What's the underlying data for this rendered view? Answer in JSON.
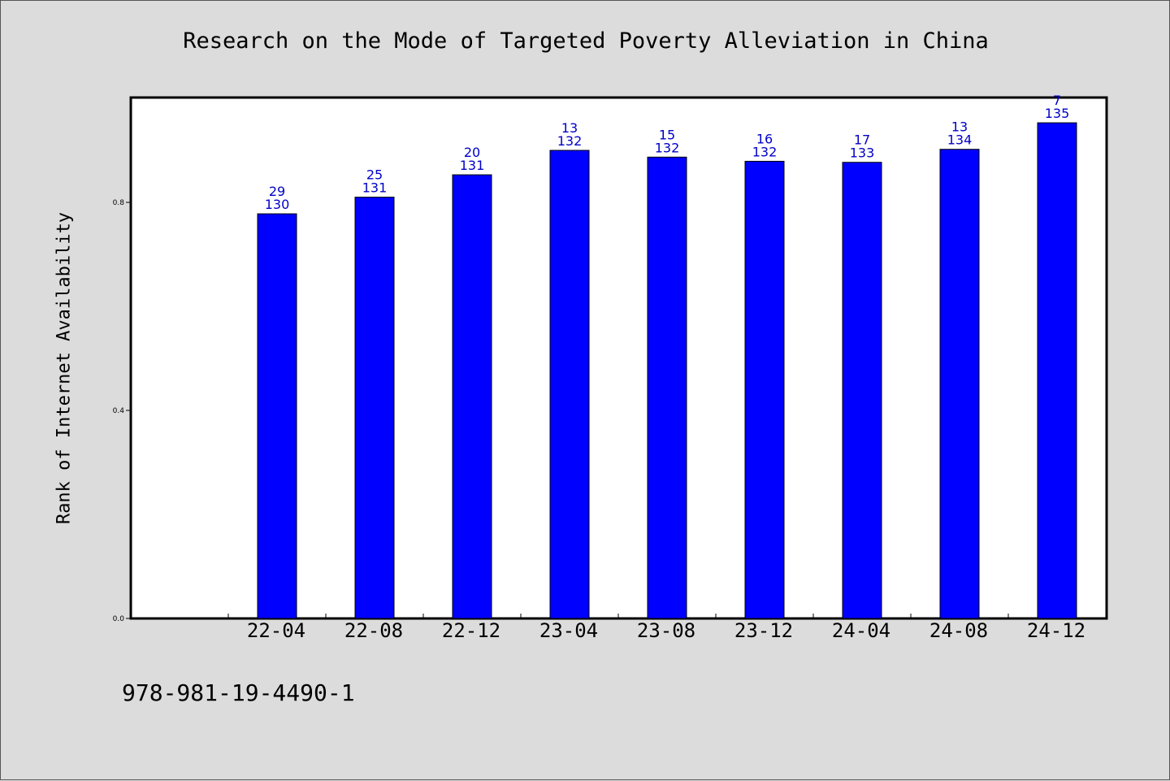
{
  "chart_data": {
    "type": "bar",
    "title": "Research on the Mode of Targeted Poverty Alleviation in China",
    "xlabel": "",
    "ylabel": "Rank of Internet Availability",
    "ylim": [
      0,
      1.0
    ],
    "yticks": [
      "0.0",
      "0.4",
      "0.8"
    ],
    "ytick_values": [
      0.0,
      0.4,
      0.8
    ],
    "categories": [
      "22-04",
      "22-08",
      "22-12",
      "23-04",
      "23-08",
      "23-12",
      "24-04",
      "24-08",
      "24-12"
    ],
    "values": [
      0.778,
      0.81,
      0.853,
      0.9,
      0.887,
      0.879,
      0.877,
      0.902,
      0.953
    ],
    "labels_top": [
      "29",
      "25",
      "20",
      "13",
      "15",
      "16",
      "17",
      "13",
      "7"
    ],
    "labels_bottom": [
      "130",
      "131",
      "131",
      "132",
      "132",
      "132",
      "133",
      "134",
      "135"
    ],
    "grid": false,
    "bar_color": "#0000ff",
    "label_color": "#0000c8"
  },
  "footer": {
    "isbn": "978-981-19-4490-1"
  }
}
